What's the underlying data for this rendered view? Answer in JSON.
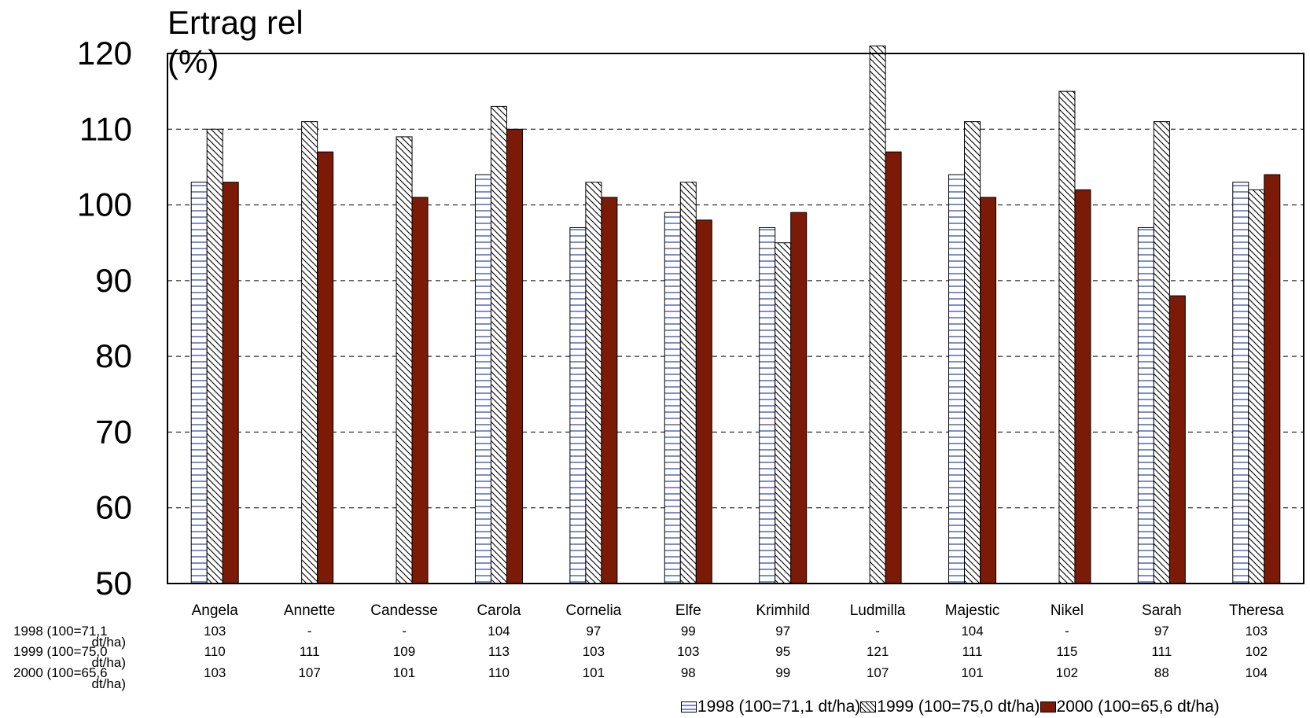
{
  "chart_data": {
    "type": "bar",
    "title": "Ertrag rel (%)",
    "ylabel": "Ertrag rel (%)",
    "xlabel": "",
    "ylim": [
      50,
      120
    ],
    "yticks": [
      "50",
      "60",
      "70",
      "80",
      "90",
      "100",
      "110",
      "120"
    ],
    "grid": "horizontal dashed",
    "legend_position": "bottom-right",
    "categories": [
      "Angela",
      "Annette",
      "Candesse",
      "Carola",
      "Cornelia",
      "Elfe",
      "Krimhild",
      "Ludmilla",
      "Majestic",
      "Nikel",
      "Sarah",
      "Theresa"
    ],
    "series": [
      {
        "name": "1998 (100=71,1 dt/ha)",
        "table_label_line1": "1998 (100=71,1",
        "table_label_line2": "dt/ha)",
        "pattern": "horizontal-lines",
        "color": "#2a3fa8",
        "values": [
          103,
          null,
          null,
          104,
          97,
          99,
          97,
          null,
          104,
          null,
          97,
          103
        ],
        "display": [
          "103",
          "-",
          "-",
          "104",
          "97",
          "99",
          "97",
          "-",
          "104",
          "-",
          "97",
          "103"
        ]
      },
      {
        "name": "1999 (100=75,0 dt/ha)",
        "table_label_line1": "1999 (100=75,0",
        "table_label_line2": "dt/ha)",
        "pattern": "diagonal-lines",
        "color": "#000000",
        "values": [
          110,
          111,
          109,
          113,
          103,
          103,
          95,
          121,
          111,
          115,
          111,
          102
        ],
        "display": [
          "110",
          "111",
          "109",
          "113",
          "103",
          "103",
          "95",
          "121",
          "111",
          "115",
          "111",
          "102"
        ]
      },
      {
        "name": "2000 (100=65,6 dt/ha)",
        "table_label_line1": "2000 (100=65,6",
        "table_label_line2": "dt/ha)",
        "pattern": "solid",
        "color": "#7b1a06",
        "values": [
          103,
          107,
          101,
          110,
          101,
          98,
          99,
          107,
          101,
          102,
          88,
          104
        ],
        "display": [
          "103",
          "107",
          "101",
          "110",
          "101",
          "98",
          "99",
          "107",
          "101",
          "102",
          "88",
          "104"
        ]
      }
    ]
  }
}
